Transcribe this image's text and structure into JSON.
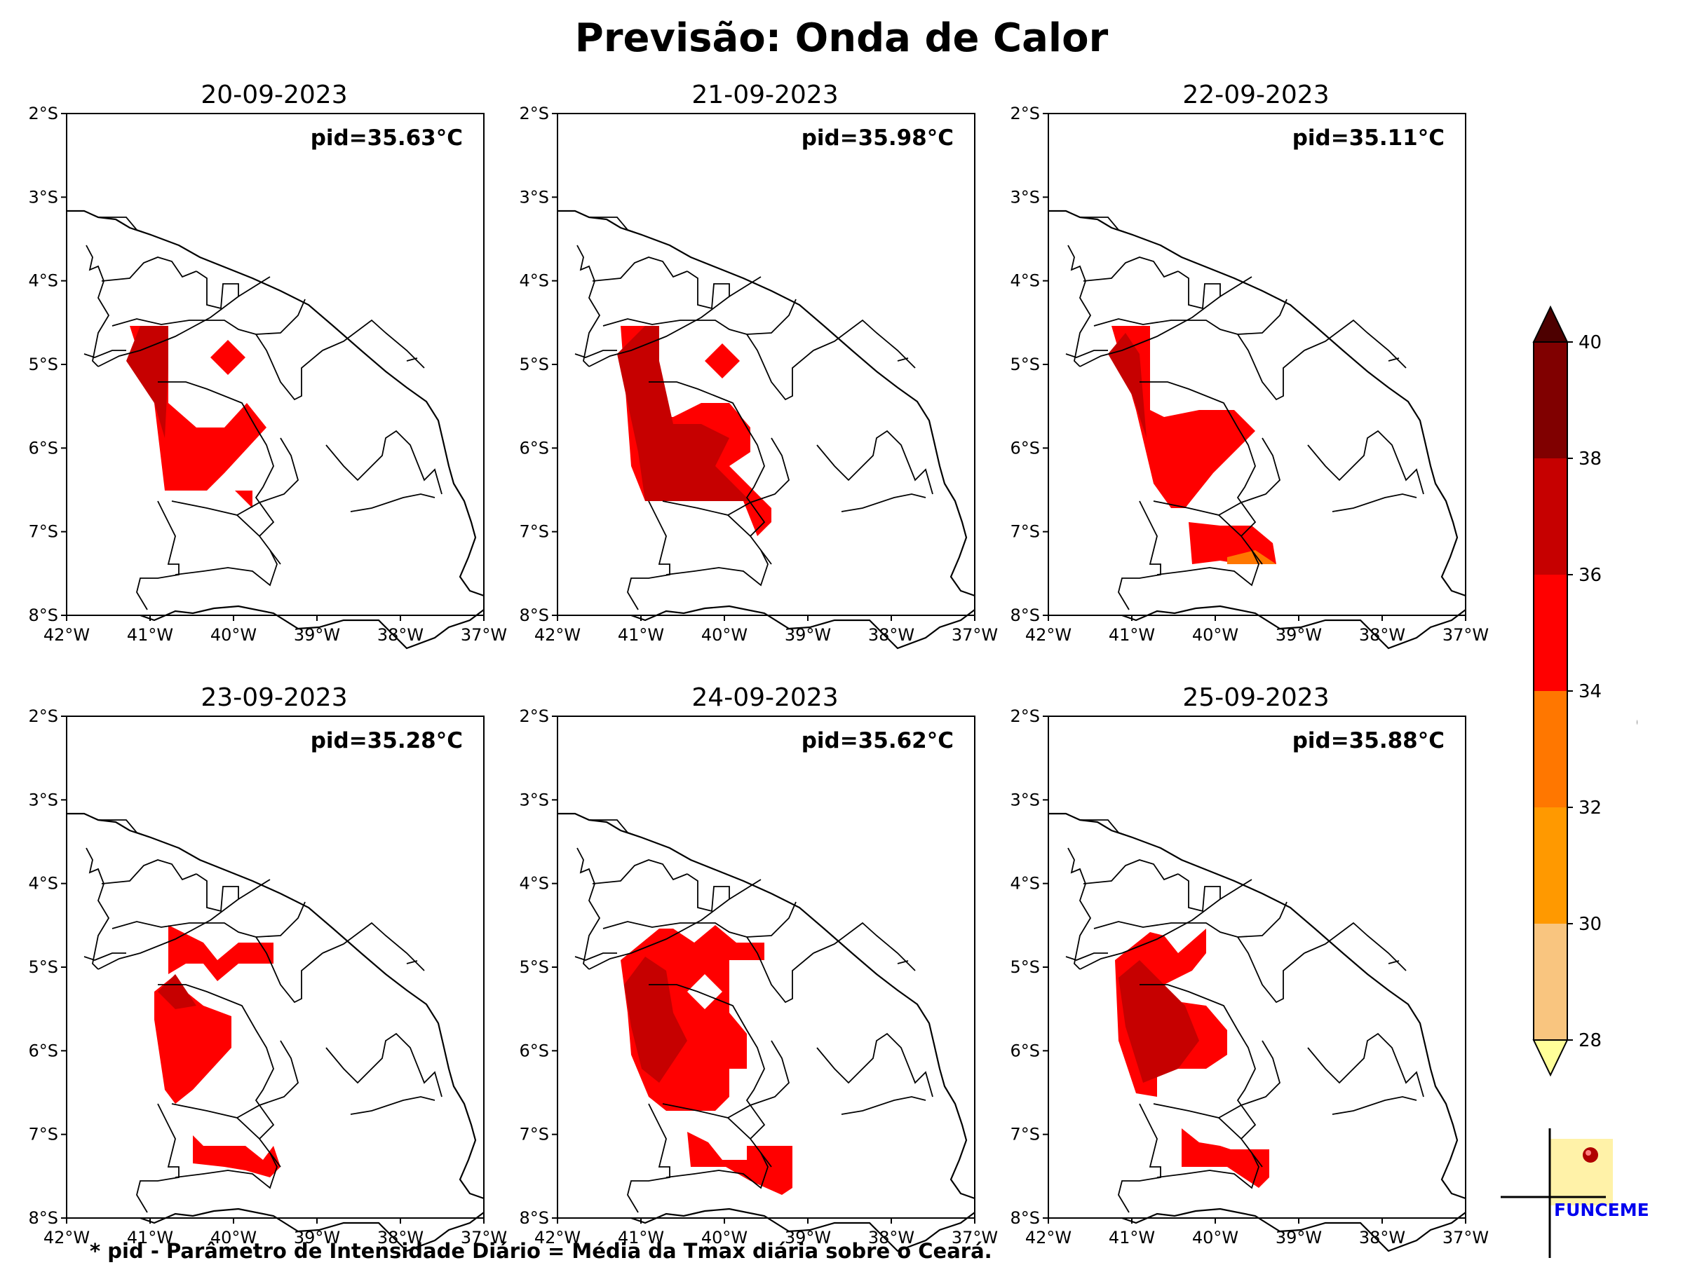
{
  "title": "Previsão: Onda de Calor",
  "footnote": "* pid - Parâmetro de Intensidade Diário = Média da Tmax diária sobre o Ceará.",
  "axes": {
    "lat_labels": [
      "2°S",
      "3°S",
      "4°S",
      "5°S",
      "6°S",
      "7°S",
      "8°S"
    ],
    "lon_labels": [
      "42°W",
      "41°W",
      "40°W",
      "39°W",
      "38°W",
      "37°W"
    ],
    "lat_range": [
      -8,
      -2
    ],
    "lon_range": [
      -42,
      -37
    ]
  },
  "panels": [
    {
      "date": "20-09-2023",
      "pid": "pid=35.63°C"
    },
    {
      "date": "21-09-2023",
      "pid": "pid=35.98°C"
    },
    {
      "date": "22-09-2023",
      "pid": "pid=35.11°C"
    },
    {
      "date": "23-09-2023",
      "pid": "pid=35.28°C"
    },
    {
      "date": "24-09-2023",
      "pid": "pid=35.62°C"
    },
    {
      "date": "25-09-2023",
      "pid": "pid=35.88°C"
    }
  ],
  "colorbar": {
    "label": "°C",
    "ticks": [
      "28",
      "30",
      "32",
      "34",
      "36",
      "38",
      "40"
    ],
    "colors": [
      "#ffff99",
      "#f9c57f",
      "#ff9900",
      "#ff7700",
      "#ff0000",
      "#c60000",
      "#800000",
      "#4d0000"
    ]
  },
  "logo": {
    "text": "FUNCEME"
  }
}
